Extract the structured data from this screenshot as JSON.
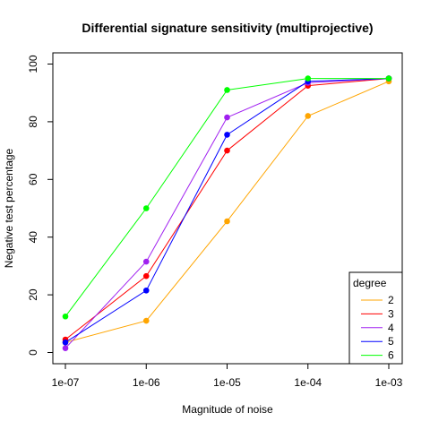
{
  "chart_data": {
    "type": "line",
    "title": "Differential signature sensitivity (multiprojective)",
    "xlabel": "Magnitude of noise",
    "ylabel": "Negative test percentage",
    "x_scale": "log",
    "x": [
      1e-07,
      1e-06,
      1e-05,
      0.0001,
      0.001
    ],
    "x_tick_labels": [
      "1e-07",
      "1e-06",
      "1e-05",
      "1e-04",
      "1e-03"
    ],
    "ylim": [
      0,
      100
    ],
    "y_ticks": [
      0,
      20,
      40,
      60,
      80,
      100
    ],
    "y_tick_labels": [
      "0",
      "20",
      "40",
      "60",
      "80",
      "100"
    ],
    "grid": false,
    "legend": {
      "title": "degree",
      "position": "bottom-right"
    },
    "series": [
      {
        "name": "2",
        "color": "#FFA500",
        "values": [
          3.5,
          11,
          45.5,
          82,
          94
        ]
      },
      {
        "name": "3",
        "color": "#FF0000",
        "values": [
          4.5,
          26.5,
          70,
          92.5,
          95
        ]
      },
      {
        "name": "4",
        "color": "#A020F0",
        "values": [
          1.5,
          31.5,
          81.5,
          93.5,
          95
        ]
      },
      {
        "name": "5",
        "color": "#0000FF",
        "values": [
          3.5,
          21.5,
          75.5,
          94,
          95
        ]
      },
      {
        "name": "6",
        "color": "#00FF00",
        "values": [
          12.5,
          50,
          91,
          95,
          95
        ]
      }
    ]
  }
}
